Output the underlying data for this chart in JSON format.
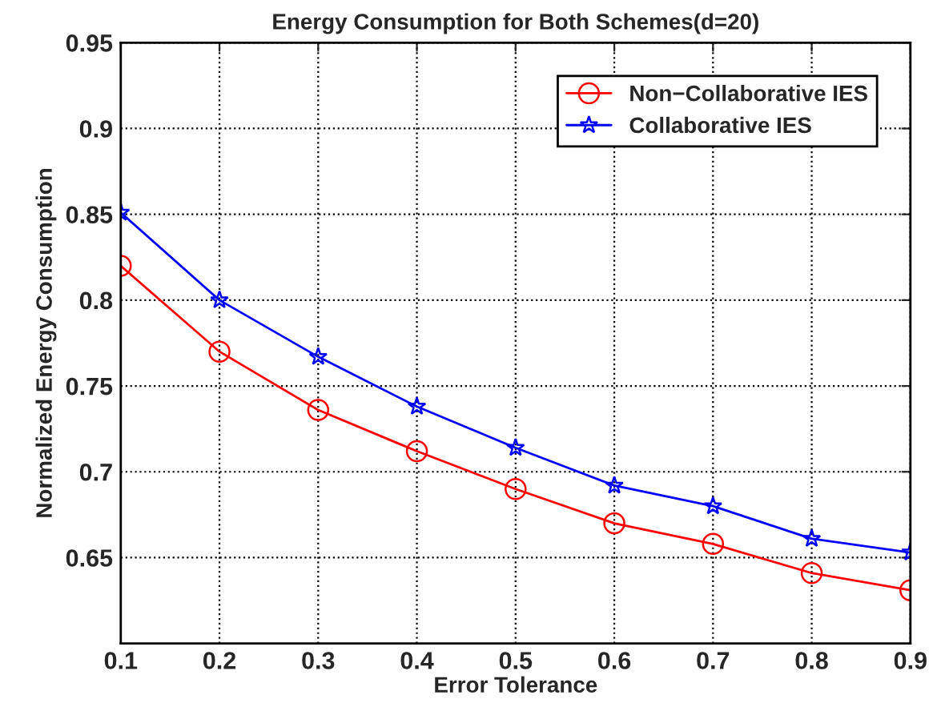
{
  "chart_data": {
    "type": "line",
    "title": "Energy Consumption for Both Schemes(d=20)",
    "xlabel": "Error Tolerance",
    "ylabel": "Normalized Energy Consumption",
    "x": [
      0.1,
      0.2,
      0.3,
      0.4,
      0.5,
      0.6,
      0.7,
      0.8,
      0.9
    ],
    "series": [
      {
        "name": "Non−Collaborative IES",
        "color": "#ff0000",
        "marker": "circle",
        "values": [
          0.82,
          0.77,
          0.736,
          0.712,
          0.69,
          0.67,
          0.658,
          0.641,
          0.631
        ]
      },
      {
        "name": "Collaborative IES",
        "color": "#0000ff",
        "marker": "star",
        "values": [
          0.851,
          0.8,
          0.767,
          0.738,
          0.714,
          0.692,
          0.68,
          0.661,
          0.653
        ]
      }
    ],
    "xlim": [
      0.1,
      0.9
    ],
    "xticks": [
      0.1,
      0.2,
      0.3,
      0.4,
      0.5,
      0.6,
      0.7,
      0.8,
      0.9
    ],
    "ylim": [
      0.6,
      0.95
    ],
    "yticks": [
      0.65,
      0.7,
      0.75,
      0.8,
      0.85,
      0.9,
      0.95
    ],
    "grid": true,
    "legend": "top right",
    "line_style": "solid"
  }
}
